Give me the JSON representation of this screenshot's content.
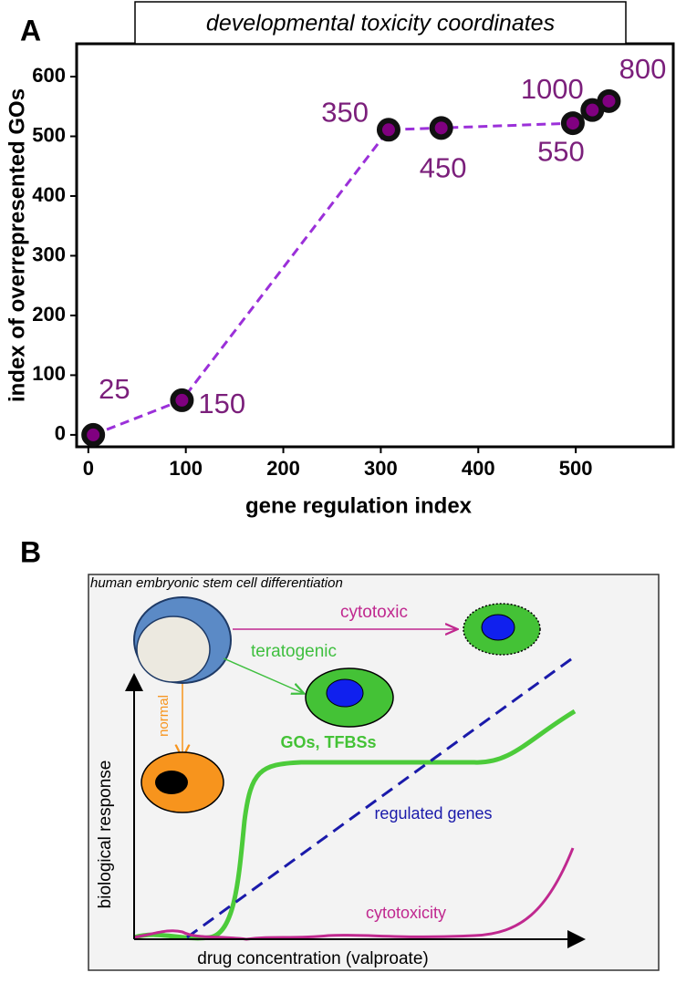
{
  "panel_labels": [
    "A",
    "B"
  ],
  "chart_data": {
    "type": "line",
    "title": "developmental toxicity coordinates",
    "x_label": "gene regulation index",
    "y_label": "index of overrepresented GOs",
    "x": [
      5,
      96,
      308,
      362,
      497,
      517,
      534
    ],
    "values": [
      0,
      58,
      511,
      514,
      522,
      544,
      559
    ],
    "point_labels": [
      "25",
      "150",
      "350",
      "450",
      "550",
      "1000",
      "800"
    ],
    "color": "#9b30d9",
    "marker_color": "#800080",
    "label_color": "#7b1f7b",
    "line_style": "dashed",
    "xlim": [
      -12,
      600
    ],
    "ylim": [
      -20,
      655
    ],
    "xticks": [
      0,
      100,
      200,
      300,
      400,
      500
    ],
    "yticks": [
      0,
      100,
      200,
      300,
      400,
      500,
      600
    ]
  },
  "diagram": {
    "title": "human embryonic stem cell differentiation",
    "cytotoxic": "cytotoxic",
    "teratogenic": "teratogenic",
    "normal": "normal",
    "gos_tfbss": "GOs, TFBSs",
    "regulated_genes": "regulated genes",
    "cytotoxicity": "cytotoxicity",
    "y_label": "biological response",
    "x_label": "drug concentration (valproate)"
  }
}
